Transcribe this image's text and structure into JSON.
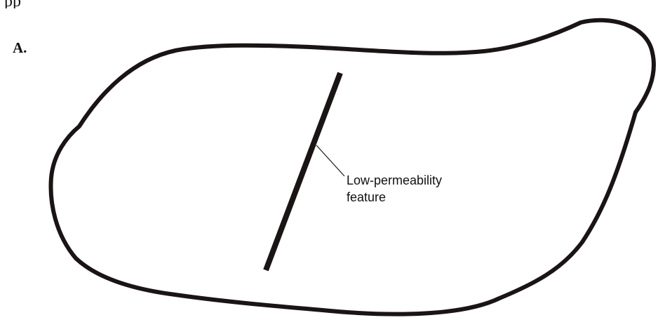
{
  "top_text": "pp",
  "panel_label": "A.",
  "callout": {
    "line1": "Low-permeability",
    "line2": "feature"
  },
  "colors": {
    "outline": "#1a1414",
    "text": "#111111",
    "background": "#ffffff"
  }
}
